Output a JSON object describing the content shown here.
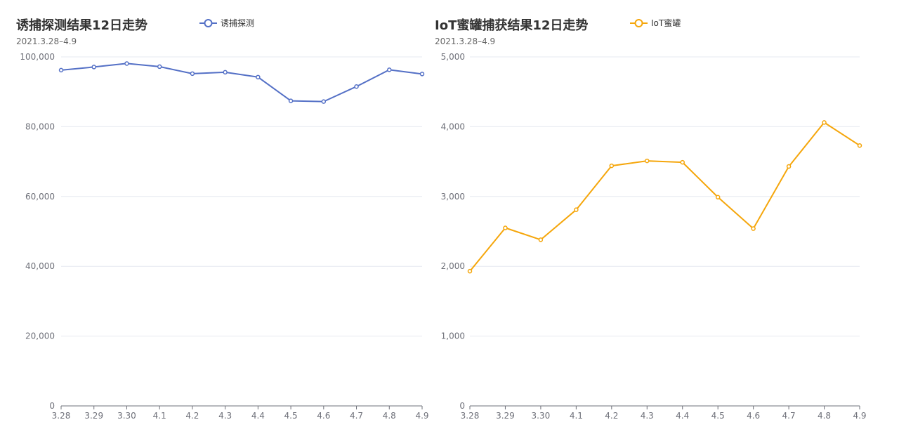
{
  "chart_data": [
    {
      "type": "line",
      "title": "诱捕探测结果12日走势",
      "subtitle": "2021.3.28–4.9",
      "categories": [
        "3.28",
        "3.29",
        "3.30",
        "4.1",
        "4.2",
        "4.3",
        "4.4",
        "4.5",
        "4.6",
        "4.7",
        "4.8",
        "4.9"
      ],
      "series": [
        {
          "name": "诱捕探测",
          "values": [
            96200,
            97100,
            98100,
            97200,
            95200,
            95600,
            94200,
            87400,
            87200,
            91500,
            96300,
            95100
          ]
        }
      ],
      "ylim": [
        0,
        100000
      ],
      "yticks": [
        "0",
        "20,000",
        "40,000",
        "60,000",
        "80,000",
        "100,000"
      ],
      "grid": true,
      "legend_position": "top",
      "color": "#5470c6"
    },
    {
      "type": "line",
      "title": "IoT蜜罐捕获结果12日走势",
      "subtitle": "2021.3.28–4.9",
      "categories": [
        "3.28",
        "3.29",
        "3.30",
        "4.1",
        "4.2",
        "4.3",
        "4.4",
        "4.5",
        "4.6",
        "4.7",
        "4.8",
        "4.9"
      ],
      "series": [
        {
          "name": "IoT蜜罐",
          "values": [
            1930,
            2550,
            2380,
            2810,
            3440,
            3510,
            3490,
            2990,
            2540,
            3430,
            4060,
            3730
          ]
        }
      ],
      "ylim": [
        0,
        5000
      ],
      "yticks": [
        "0",
        "1,000",
        "2,000",
        "3,000",
        "4,000",
        "5,000"
      ],
      "grid": true,
      "legend_position": "top",
      "color": "#f5a60b"
    }
  ]
}
